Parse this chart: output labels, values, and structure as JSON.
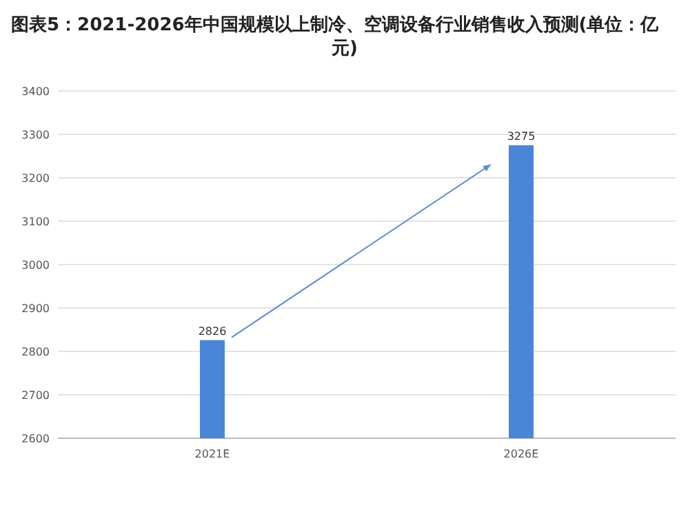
{
  "chart_data": {
    "type": "bar",
    "title": "图表5：2021-2026年中国规模以上制冷、空调设备行业销售收入预测(单位：亿元)",
    "categories": [
      "2021E",
      "2026E"
    ],
    "values": [
      2826,
      3275
    ],
    "color": "#4a86d8",
    "ylim": [
      2600,
      3400
    ],
    "yticks": [
      2600,
      2700,
      2800,
      2900,
      3000,
      3100,
      3200,
      3300,
      3400
    ],
    "grid": "y",
    "data_labels": true
  }
}
